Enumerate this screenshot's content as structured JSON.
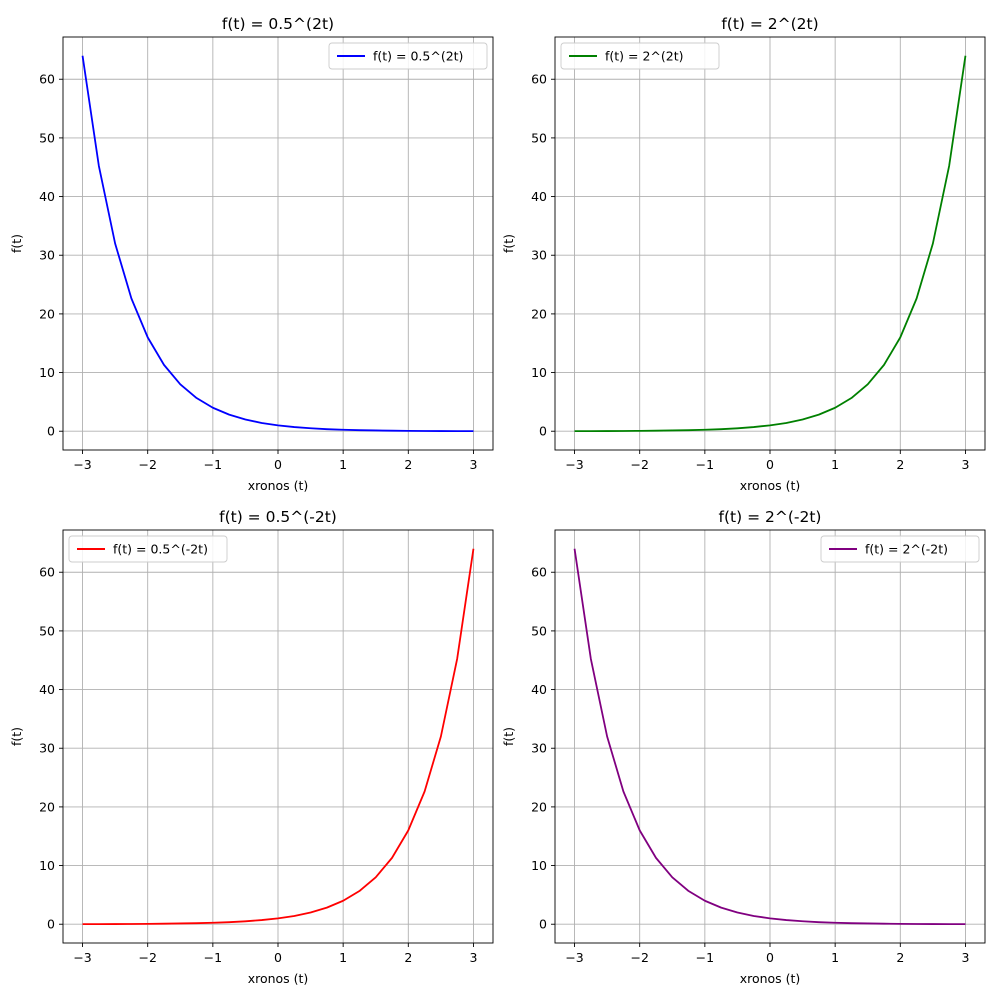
{
  "chart_data": [
    {
      "type": "line",
      "title": "f(t) = 0.5^(2t)",
      "xlabel": "xronos (t)",
      "ylabel": "f(t)",
      "xlim": [
        -3.3,
        3.3
      ],
      "ylim": [
        -3.2,
        67.2
      ],
      "xticks": [
        -3,
        -2,
        -1,
        0,
        1,
        2,
        3
      ],
      "xtick_labels": [
        "−3",
        "−2",
        "−1",
        "0",
        "1",
        "2",
        "3"
      ],
      "yticks": [
        0,
        10,
        20,
        30,
        40,
        50,
        60
      ],
      "ytick_labels": [
        "0",
        "10",
        "20",
        "30",
        "40",
        "50",
        "60"
      ],
      "grid": true,
      "legend": "upper-right",
      "series": [
        {
          "name": "f(t) = 0.5^(2t)",
          "color": "#0000ff",
          "x": [
            -3,
            -2.75,
            -2.5,
            -2.25,
            -2,
            -1.75,
            -1.5,
            -1.25,
            -1,
            -0.75,
            -0.5,
            -0.25,
            0,
            0.25,
            0.5,
            0.75,
            1,
            1.25,
            1.5,
            1.75,
            2,
            2.25,
            2.5,
            2.75,
            3
          ],
          "y": [
            64,
            45.25,
            32,
            22.63,
            16,
            11.31,
            8,
            5.66,
            4,
            2.83,
            2,
            1.41,
            1,
            0.71,
            0.5,
            0.35,
            0.25,
            0.18,
            0.13,
            0.09,
            0.06,
            0.04,
            0.03,
            0.02,
            0.02
          ]
        }
      ]
    },
    {
      "type": "line",
      "title": "f(t) = 2^(2t)",
      "xlabel": "xronos (t)",
      "ylabel": "f(t)",
      "xlim": [
        -3.3,
        3.3
      ],
      "ylim": [
        -3.2,
        67.2
      ],
      "xticks": [
        -3,
        -2,
        -1,
        0,
        1,
        2,
        3
      ],
      "xtick_labels": [
        "−3",
        "−2",
        "−1",
        "0",
        "1",
        "2",
        "3"
      ],
      "yticks": [
        0,
        10,
        20,
        30,
        40,
        50,
        60
      ],
      "ytick_labels": [
        "0",
        "10",
        "20",
        "30",
        "40",
        "50",
        "60"
      ],
      "grid": true,
      "legend": "upper-left",
      "series": [
        {
          "name": "f(t) = 2^(2t)",
          "color": "#008000",
          "x": [
            -3,
            -2.75,
            -2.5,
            -2.25,
            -2,
            -1.75,
            -1.5,
            -1.25,
            -1,
            -0.75,
            -0.5,
            -0.25,
            0,
            0.25,
            0.5,
            0.75,
            1,
            1.25,
            1.5,
            1.75,
            2,
            2.25,
            2.5,
            2.75,
            3
          ],
          "y": [
            0.02,
            0.02,
            0.03,
            0.04,
            0.06,
            0.09,
            0.13,
            0.18,
            0.25,
            0.35,
            0.5,
            0.71,
            1,
            1.41,
            2,
            2.83,
            4,
            5.66,
            8,
            11.31,
            16,
            22.63,
            32,
            45.25,
            64
          ]
        }
      ]
    },
    {
      "type": "line",
      "title": "f(t) = 0.5^(-2t)",
      "xlabel": "xronos (t)",
      "ylabel": "f(t)",
      "xlim": [
        -3.3,
        3.3
      ],
      "ylim": [
        -3.2,
        67.2
      ],
      "xticks": [
        -3,
        -2,
        -1,
        0,
        1,
        2,
        3
      ],
      "xtick_labels": [
        "−3",
        "−2",
        "−1",
        "0",
        "1",
        "2",
        "3"
      ],
      "yticks": [
        0,
        10,
        20,
        30,
        40,
        50,
        60
      ],
      "ytick_labels": [
        "0",
        "10",
        "20",
        "30",
        "40",
        "50",
        "60"
      ],
      "grid": true,
      "legend": "upper-left",
      "series": [
        {
          "name": "f(t) = 0.5^(-2t)",
          "color": "#ff0000",
          "x": [
            -3,
            -2.75,
            -2.5,
            -2.25,
            -2,
            -1.75,
            -1.5,
            -1.25,
            -1,
            -0.75,
            -0.5,
            -0.25,
            0,
            0.25,
            0.5,
            0.75,
            1,
            1.25,
            1.5,
            1.75,
            2,
            2.25,
            2.5,
            2.75,
            3
          ],
          "y": [
            0.02,
            0.02,
            0.03,
            0.04,
            0.06,
            0.09,
            0.13,
            0.18,
            0.25,
            0.35,
            0.5,
            0.71,
            1,
            1.41,
            2,
            2.83,
            4,
            5.66,
            8,
            11.31,
            16,
            22.63,
            32,
            45.25,
            64
          ]
        }
      ]
    },
    {
      "type": "line",
      "title": "f(t) = 2^(-2t)",
      "xlabel": "xronos (t)",
      "ylabel": "f(t)",
      "xlim": [
        -3.3,
        3.3
      ],
      "ylim": [
        -3.2,
        67.2
      ],
      "xticks": [
        -3,
        -2,
        -1,
        0,
        1,
        2,
        3
      ],
      "xtick_labels": [
        "−3",
        "−2",
        "−1",
        "0",
        "1",
        "2",
        "3"
      ],
      "yticks": [
        0,
        10,
        20,
        30,
        40,
        50,
        60
      ],
      "ytick_labels": [
        "0",
        "10",
        "20",
        "30",
        "40",
        "50",
        "60"
      ],
      "grid": true,
      "legend": "upper-right",
      "series": [
        {
          "name": "f(t) = 2^(-2t)",
          "color": "#800080",
          "x": [
            -3,
            -2.75,
            -2.5,
            -2.25,
            -2,
            -1.75,
            -1.5,
            -1.25,
            -1,
            -0.75,
            -0.5,
            -0.25,
            0,
            0.25,
            0.5,
            0.75,
            1,
            1.25,
            1.5,
            1.75,
            2,
            2.25,
            2.5,
            2.75,
            3
          ],
          "y": [
            64,
            45.25,
            32,
            22.63,
            16,
            11.31,
            8,
            5.66,
            4,
            2.83,
            2,
            1.41,
            1,
            0.71,
            0.5,
            0.35,
            0.25,
            0.18,
            0.13,
            0.09,
            0.06,
            0.04,
            0.03,
            0.02,
            0.02
          ]
        }
      ]
    }
  ]
}
